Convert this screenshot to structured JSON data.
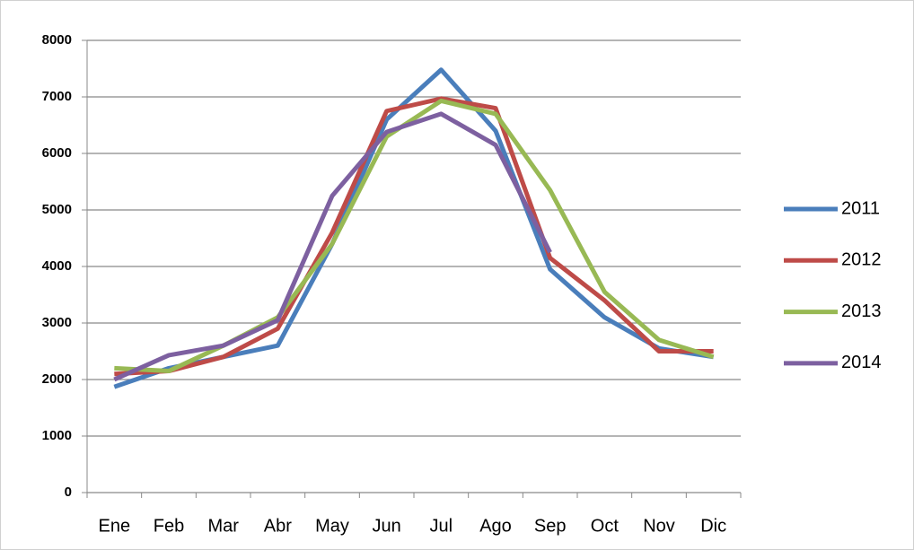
{
  "chart_data": {
    "type": "line",
    "categories": [
      "Ene",
      "Feb",
      "Mar",
      "Abr",
      "May",
      "Jun",
      "Jul",
      "Ago",
      "Sep",
      "Oct",
      "Nov",
      "Dic"
    ],
    "series": [
      {
        "name": "2011",
        "color": "#4a7ebb",
        "values": [
          1870,
          2200,
          2400,
          2600,
          4400,
          6600,
          7480,
          6400,
          3950,
          3100,
          2550,
          2400
        ]
      },
      {
        "name": "2012",
        "color": "#be4b48",
        "values": [
          2100,
          2150,
          2400,
          2900,
          4600,
          6750,
          6970,
          6800,
          4150,
          3400,
          2500,
          2500
        ]
      },
      {
        "name": "2013",
        "color": "#98b954",
        "values": [
          2200,
          2150,
          2600,
          3100,
          4400,
          6300,
          6930,
          6700,
          5350,
          3550,
          2700,
          2400
        ]
      },
      {
        "name": "2014",
        "color": "#7d60a0",
        "values": [
          2000,
          2430,
          2600,
          3050,
          5250,
          6380,
          6700,
          6150,
          4250,
          null,
          null,
          null
        ]
      }
    ],
    "ylim": [
      0,
      8000
    ],
    "yticks": [
      0,
      1000,
      2000,
      3000,
      4000,
      5000,
      6000,
      7000,
      8000
    ],
    "grid": true,
    "legend": "right"
  }
}
